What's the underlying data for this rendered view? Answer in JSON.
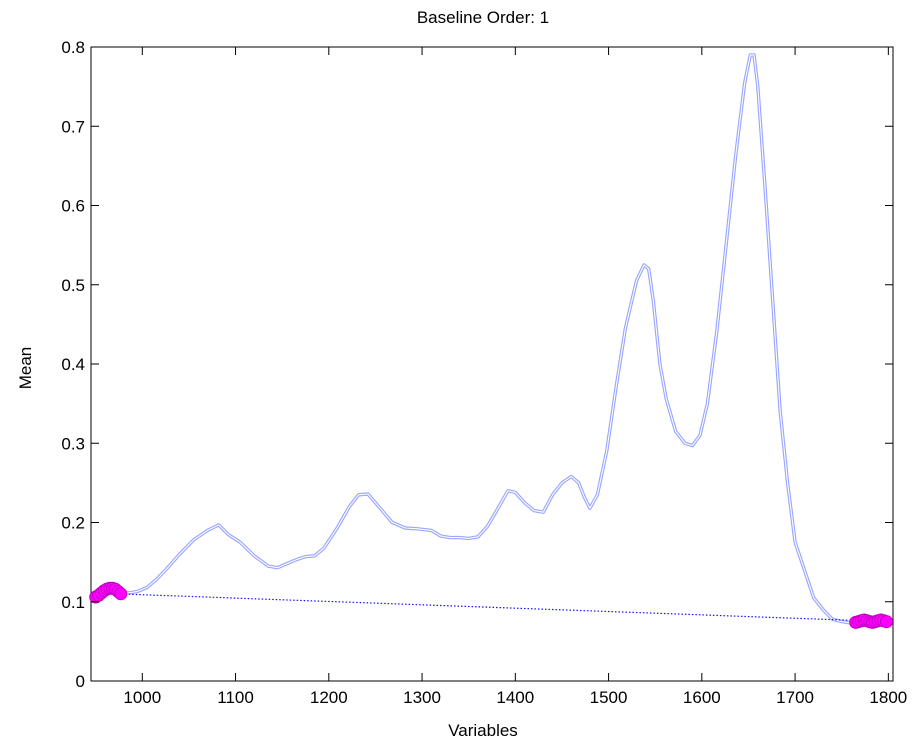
{
  "chart_data": {
    "type": "line",
    "title": "Baseline Order: 1",
    "xlabel": "Variables",
    "ylabel": "Mean",
    "xlim": [
      945,
      1805
    ],
    "ylim": [
      0,
      0.8
    ],
    "xticks": [
      1000,
      1100,
      1200,
      1300,
      1400,
      1500,
      1600,
      1700,
      1800
    ],
    "yticks": [
      0,
      0.1,
      0.2,
      0.3,
      0.4,
      0.5,
      0.6,
      0.7,
      0.8
    ],
    "grid": false,
    "colors": {
      "spectrum": "#9aa6ff",
      "baseline": "#1010ff",
      "markers": "#ff00ff"
    },
    "series": [
      {
        "style": "double-line",
        "x": [
          948,
          955,
          962,
          968,
          975,
          985,
          995,
          1005,
          1015,
          1025,
          1040,
          1055,
          1070,
          1082,
          1092,
          1105,
          1120,
          1135,
          1145,
          1155,
          1165,
          1175,
          1185,
          1195,
          1210,
          1222,
          1232,
          1242,
          1255,
          1268,
          1282,
          1295,
          1310,
          1320,
          1330,
          1340,
          1350,
          1360,
          1370,
          1380,
          1392,
          1400,
          1410,
          1420,
          1430,
          1440,
          1450,
          1460,
          1468,
          1474,
          1480,
          1488,
          1498,
          1508,
          1518,
          1530,
          1538,
          1543,
          1548,
          1555,
          1562,
          1572,
          1582,
          1590,
          1598,
          1606,
          1616,
          1626,
          1636,
          1646,
          1652,
          1656,
          1660,
          1668,
          1676,
          1684,
          1692,
          1700,
          1710,
          1720,
          1730,
          1740,
          1750,
          1760
        ],
        "y": [
          0.106,
          0.11,
          0.114,
          0.116,
          0.113,
          0.111,
          0.113,
          0.118,
          0.128,
          0.14,
          0.16,
          0.178,
          0.19,
          0.197,
          0.185,
          0.175,
          0.158,
          0.145,
          0.143,
          0.148,
          0.153,
          0.157,
          0.158,
          0.168,
          0.195,
          0.22,
          0.235,
          0.236,
          0.218,
          0.2,
          0.193,
          0.192,
          0.19,
          0.183,
          0.181,
          0.181,
          0.18,
          0.182,
          0.195,
          0.215,
          0.24,
          0.238,
          0.225,
          0.215,
          0.213,
          0.235,
          0.25,
          0.258,
          0.25,
          0.232,
          0.218,
          0.235,
          0.29,
          0.37,
          0.445,
          0.505,
          0.525,
          0.52,
          0.48,
          0.4,
          0.355,
          0.315,
          0.3,
          0.297,
          0.31,
          0.35,
          0.44,
          0.55,
          0.66,
          0.755,
          0.79,
          0.79,
          0.75,
          0.62,
          0.48,
          0.34,
          0.25,
          0.175,
          0.14,
          0.105,
          0.09,
          0.078,
          0.075,
          0.073
        ]
      },
      {
        "style": "dotted",
        "x": [
          948,
          1800
        ],
        "y": [
          0.111,
          0.075
        ]
      },
      {
        "style": "markers",
        "x": [
          950,
          953,
          956,
          959,
          962,
          965,
          968,
          971,
          974,
          977,
          1765,
          1768,
          1771,
          1774,
          1777,
          1780,
          1783,
          1786,
          1789,
          1792,
          1795,
          1798
        ],
        "y": [
          0.106,
          0.108,
          0.111,
          0.114,
          0.116,
          0.117,
          0.117,
          0.116,
          0.113,
          0.11,
          0.074,
          0.075,
          0.076,
          0.077,
          0.076,
          0.075,
          0.074,
          0.075,
          0.076,
          0.077,
          0.076,
          0.075
        ]
      }
    ]
  }
}
